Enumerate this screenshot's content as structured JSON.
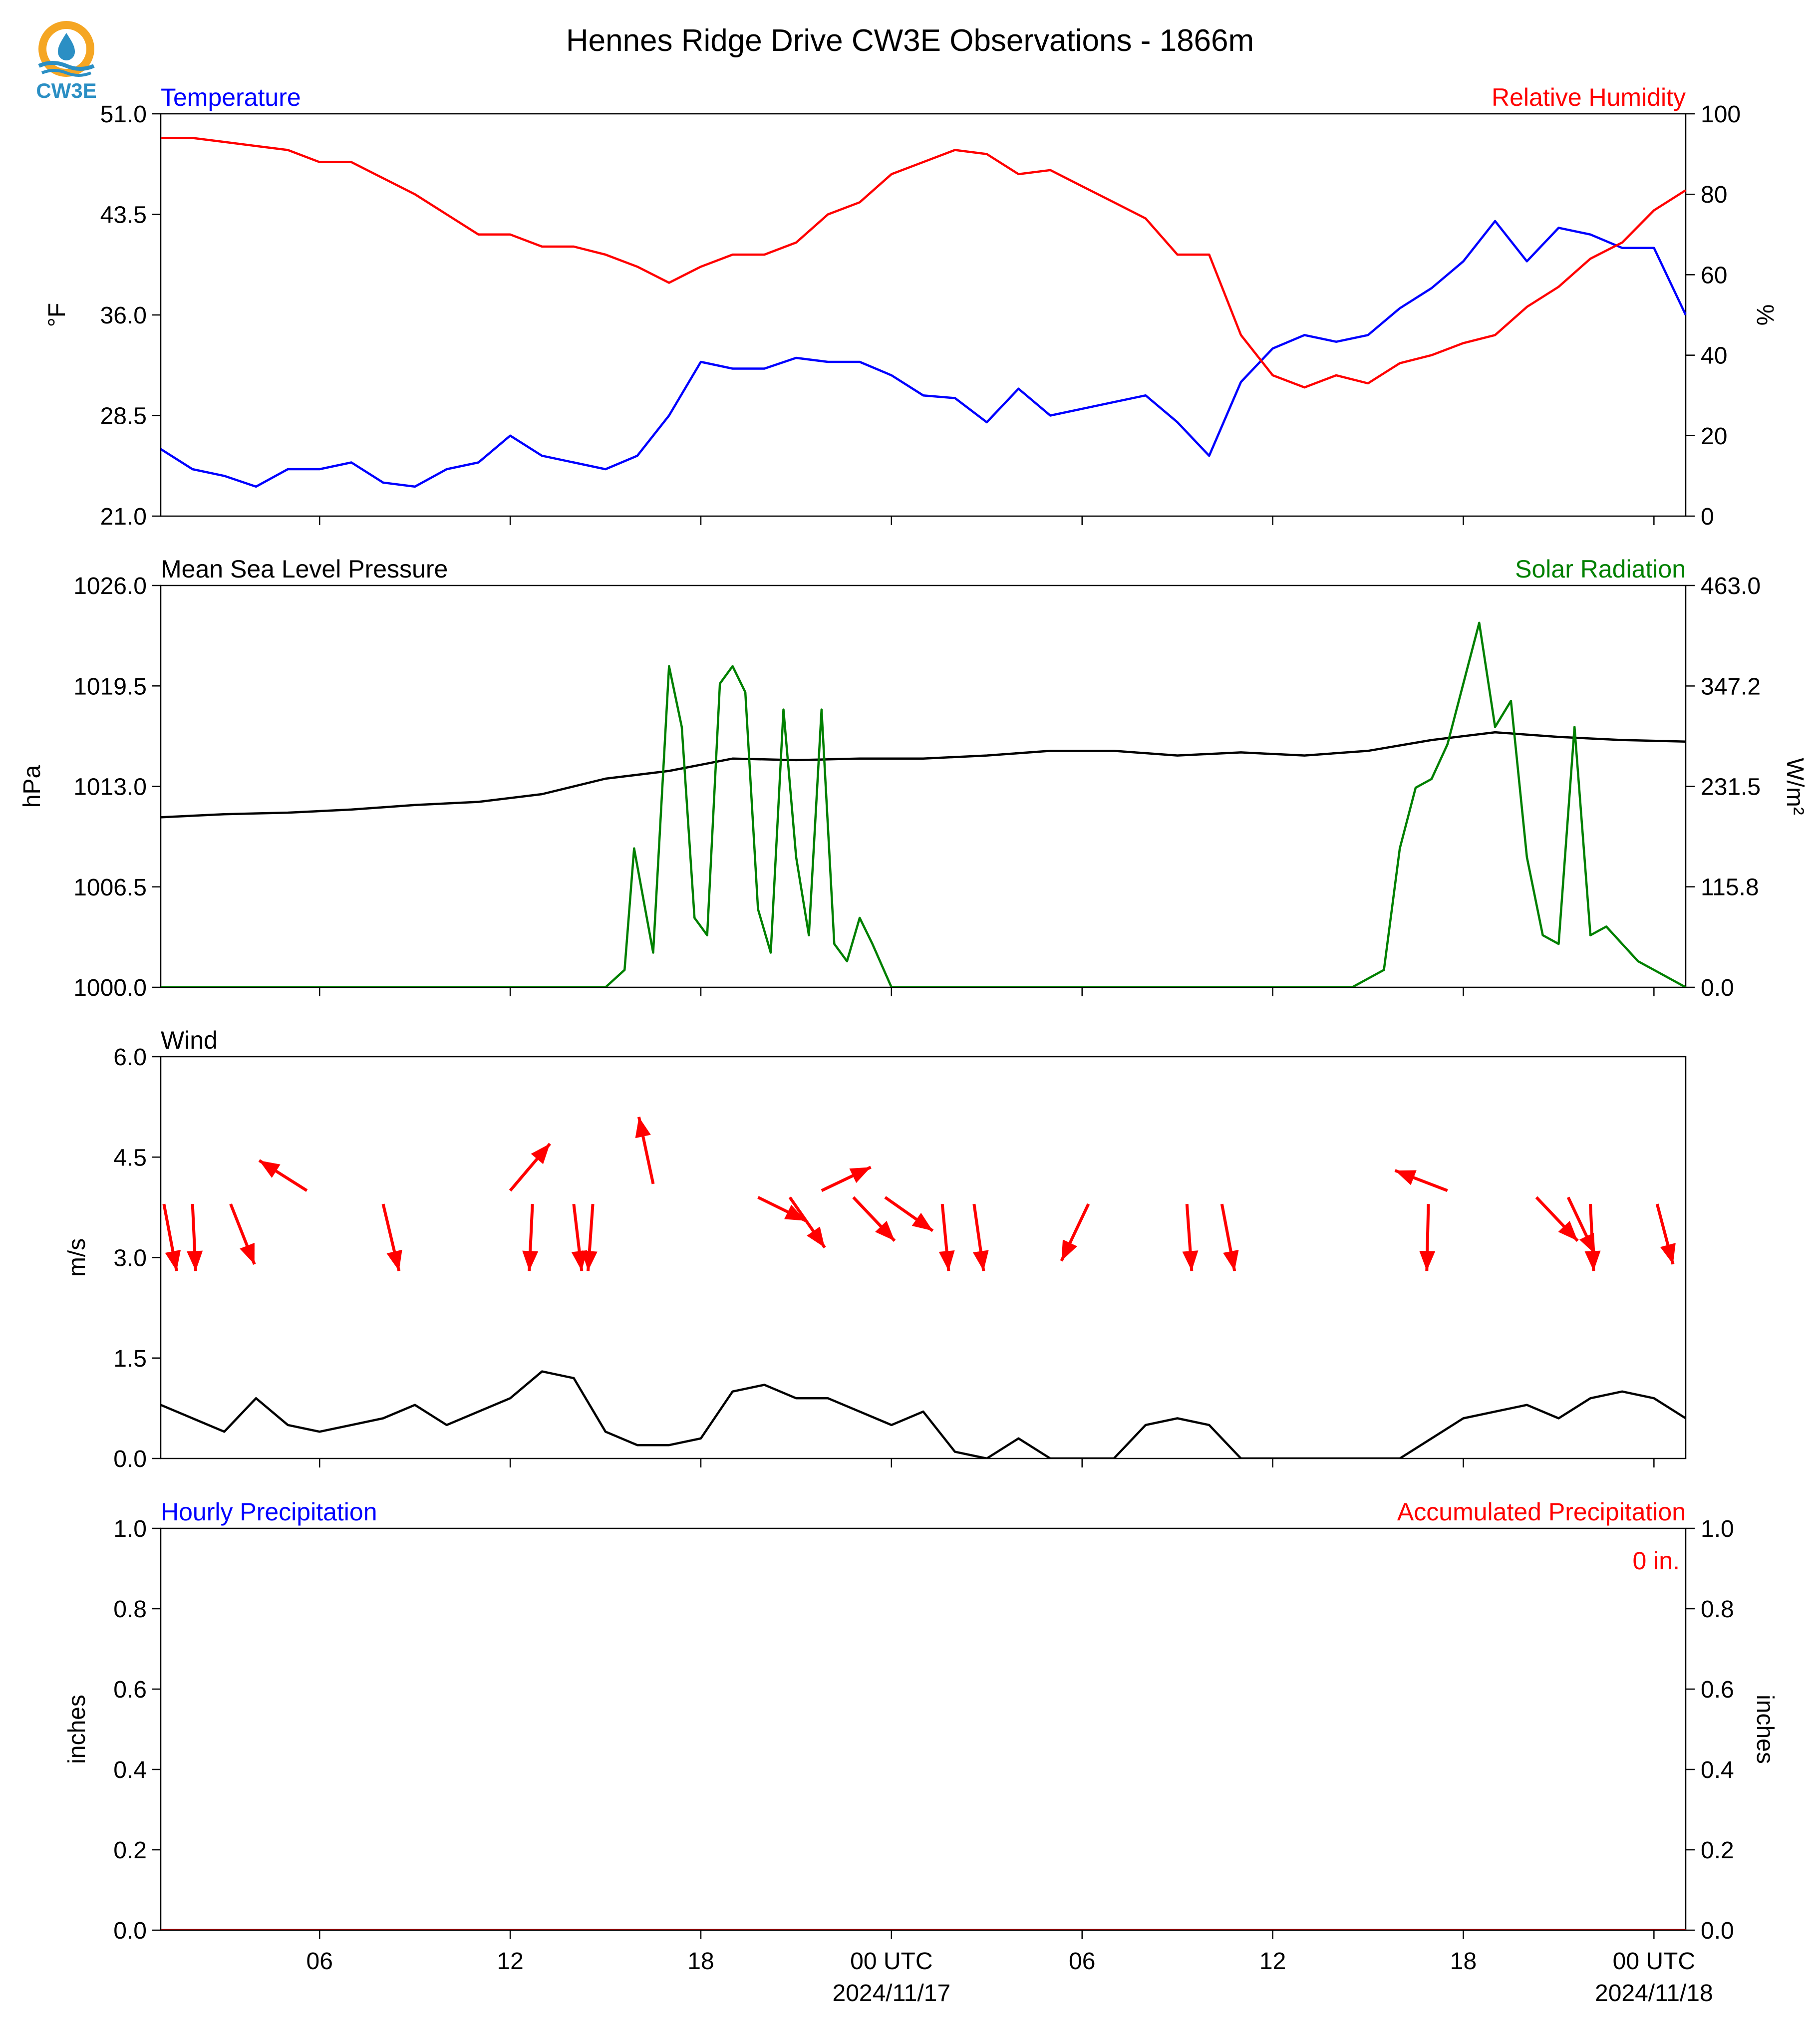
{
  "title": "Hennes Ridge Drive CW3E Observations - 1866m",
  "logo_text": "CW3E",
  "colors": {
    "temperature": "#0000ff",
    "humidity": "#ff0000",
    "pressure": "#000000",
    "solar": "#008000",
    "wind": "#000000",
    "arrows": "#ff0000",
    "precip_hourly": "#0000ff",
    "precip_accum": "#ff0000",
    "logo_orange": "#f5a623",
    "logo_blue": "#2b8fc4"
  },
  "x_axis": {
    "tick_labels": [
      "06",
      "12",
      "18",
      "00 UTC",
      "06",
      "12",
      "18",
      "00 UTC"
    ],
    "date_labels": [
      "2024/11/17",
      "2024/11/18"
    ],
    "start_hour": 1,
    "end_hour": 49
  },
  "chart_data": [
    {
      "type": "line",
      "left_title": "Temperature",
      "right_title": "Relative Humidity",
      "ylabel": "°F",
      "y2label": "%",
      "ylim": [
        21.0,
        51.0
      ],
      "y2lim": [
        0,
        100
      ],
      "yticks": [
        "21.0",
        "28.5",
        "36.0",
        "43.5",
        "51.0"
      ],
      "y2ticks": [
        "0",
        "20",
        "40",
        "60",
        "80",
        "100"
      ],
      "grid": false,
      "series": [
        {
          "axis": "left",
          "x": [
            1,
            2,
            3,
            4,
            5,
            6,
            7,
            8,
            9,
            10,
            11,
            12,
            13,
            14,
            15,
            16,
            17,
            18,
            19,
            20,
            21,
            22,
            23,
            24,
            25,
            26,
            27,
            28,
            29,
            30,
            31,
            32,
            33,
            34,
            35,
            36,
            37,
            38,
            39,
            40,
            41,
            42,
            43,
            44,
            45,
            46,
            47,
            48,
            49
          ],
          "values": [
            26.0,
            24.5,
            24.0,
            23.2,
            24.5,
            24.5,
            25.0,
            23.5,
            23.2,
            24.5,
            25.0,
            27.0,
            25.5,
            25.0,
            24.5,
            25.5,
            28.5,
            32.5,
            32.0,
            32.0,
            32.8,
            32.5,
            32.5,
            31.5,
            30.0,
            29.8,
            28.0,
            30.5,
            28.5,
            29.0,
            29.5,
            30.0,
            28.0,
            25.5,
            31.0,
            33.5,
            34.5,
            34.0,
            34.5,
            36.5,
            38.0,
            40.0,
            43.0,
            40.0,
            42.5,
            42.0,
            41.0,
            41.0,
            36.0
          ]
        },
        {
          "axis": "right",
          "x": [
            1,
            2,
            3,
            4,
            5,
            6,
            7,
            8,
            9,
            10,
            11,
            12,
            13,
            14,
            15,
            16,
            17,
            18,
            19,
            20,
            21,
            22,
            23,
            24,
            25,
            26,
            27,
            28,
            29,
            30,
            31,
            32,
            33,
            34,
            35,
            36,
            37,
            38,
            39,
            40,
            41,
            42,
            43,
            44,
            45,
            46,
            47,
            48,
            49
          ],
          "values": [
            94,
            94,
            93,
            92,
            91,
            88,
            88,
            84,
            80,
            75,
            70,
            70,
            67,
            67,
            65,
            62,
            58,
            62,
            65,
            65,
            68,
            75,
            78,
            85,
            88,
            91,
            90,
            85,
            86,
            82,
            78,
            74,
            65,
            65,
            45,
            35,
            32,
            35,
            33,
            38,
            40,
            43,
            45,
            52,
            57,
            64,
            68,
            76,
            81
          ]
        }
      ]
    },
    {
      "type": "line",
      "left_title": "Mean Sea Level Pressure",
      "right_title": "Solar Radiation",
      "ylabel": "hPa",
      "y2label": "W/m²",
      "ylim": [
        1000.0,
        1026.0
      ],
      "y2lim": [
        0.0,
        463.0
      ],
      "yticks": [
        "1000.0",
        "1006.5",
        "1013.0",
        "1019.5",
        "1026.0"
      ],
      "y2ticks": [
        "0.0",
        "115.8",
        "231.5",
        "347.2",
        "463.0"
      ],
      "grid": false,
      "series": [
        {
          "axis": "left",
          "x": [
            1,
            3,
            5,
            7,
            9,
            11,
            13,
            15,
            17,
            19,
            21,
            23,
            25,
            27,
            29,
            31,
            33,
            35,
            37,
            39,
            41,
            43,
            45,
            47,
            49
          ],
          "values": [
            1011.0,
            1011.2,
            1011.3,
            1011.5,
            1011.8,
            1012.0,
            1012.5,
            1013.5,
            1014.0,
            1014.8,
            1014.7,
            1014.8,
            1014.8,
            1015.0,
            1015.3,
            1015.3,
            1015.0,
            1015.2,
            1015.0,
            1015.3,
            1016.0,
            1016.5,
            1016.2,
            1016.0,
            1015.9
          ]
        },
        {
          "axis": "right",
          "x": [
            1,
            15,
            15.6,
            15.9,
            16.5,
            17.0,
            17.4,
            17.8,
            18.2,
            18.6,
            19.0,
            19.4,
            19.8,
            20.2,
            20.6,
            21.0,
            21.4,
            21.8,
            22.2,
            22.6,
            23.0,
            23.4,
            24.0,
            38.5,
            39.5,
            40.0,
            40.5,
            41.0,
            41.5,
            42.0,
            42.5,
            43.0,
            43.5,
            44.0,
            44.5,
            45.0,
            45.5,
            46.0,
            46.5,
            47.0,
            47.5,
            48.0,
            49.0
          ],
          "values": [
            0,
            0,
            20,
            160,
            40,
            370,
            300,
            80,
            60,
            350,
            370,
            340,
            90,
            40,
            320,
            150,
            60,
            320,
            50,
            30,
            80,
            50,
            0,
            0,
            20,
            160,
            230,
            240,
            280,
            350,
            420,
            300,
            330,
            150,
            60,
            50,
            300,
            60,
            70,
            50,
            30,
            20,
            0
          ]
        }
      ]
    },
    {
      "type": "line",
      "left_title": "Wind",
      "ylabel": "m/s",
      "ylim": [
        0.0,
        6.0
      ],
      "yticks": [
        "0.0",
        "1.5",
        "3.0",
        "4.5",
        "6.0"
      ],
      "grid": false,
      "series": [
        {
          "axis": "left",
          "x": [
            1,
            2,
            3,
            4,
            5,
            6,
            7,
            8,
            9,
            10,
            11,
            12,
            13,
            14,
            15,
            16,
            17,
            18,
            19,
            20,
            21,
            22,
            23,
            24,
            25,
            26,
            27,
            28,
            29,
            30,
            31,
            32,
            33,
            34,
            35,
            36,
            37,
            38,
            39,
            40,
            41,
            42,
            43,
            44,
            45,
            46,
            47,
            48,
            49
          ],
          "values": [
            0.8,
            0.6,
            0.4,
            0.9,
            0.5,
            0.4,
            0.5,
            0.6,
            0.8,
            0.5,
            0.7,
            0.9,
            1.3,
            1.2,
            0.4,
            0.2,
            0.2,
            0.3,
            1.0,
            1.1,
            0.9,
            0.9,
            0.7,
            0.5,
            0.7,
            0.1,
            0.0,
            0.3,
            0.0,
            0.0,
            0.0,
            0.5,
            0.6,
            0.5,
            0.0,
            0.0,
            0.0,
            0.0,
            0.0,
            0.0,
            0.3,
            0.6,
            0.7,
            0.8,
            0.6,
            0.9,
            1.0,
            0.9,
            0.6
          ]
        }
      ],
      "wind_arrows": [
        {
          "x": 1.1,
          "y": 3.8,
          "dx": 0.8,
          "dy": -2.0
        },
        {
          "x": 2.0,
          "y": 3.8,
          "dx": 0.2,
          "dy": -2.0
        },
        {
          "x": 3.2,
          "y": 3.8,
          "dx": 1.5,
          "dy": -1.8
        },
        {
          "x": 5.6,
          "y": 4.0,
          "dx": -3.0,
          "dy": 0.9
        },
        {
          "x": 8.0,
          "y": 3.8,
          "dx": 1.0,
          "dy": -2.0
        },
        {
          "x": 12.0,
          "y": 4.0,
          "dx": 2.5,
          "dy": 1.4
        },
        {
          "x": 12.7,
          "y": 3.8,
          "dx": -0.2,
          "dy": -2.0
        },
        {
          "x": 14.0,
          "y": 3.8,
          "dx": 0.5,
          "dy": -2.0
        },
        {
          "x": 14.6,
          "y": 3.8,
          "dx": -0.3,
          "dy": -2.0
        },
        {
          "x": 16.5,
          "y": 4.1,
          "dx": -0.9,
          "dy": 2.0
        },
        {
          "x": 19.8,
          "y": 3.9,
          "dx": 3.0,
          "dy": -0.7
        },
        {
          "x": 20.8,
          "y": 3.9,
          "dx": 2.2,
          "dy": -1.5
        },
        {
          "x": 21.8,
          "y": 4.0,
          "dx": 3.1,
          "dy": 0.7
        },
        {
          "x": 22.8,
          "y": 3.9,
          "dx": 2.6,
          "dy": -1.3
        },
        {
          "x": 23.8,
          "y": 3.9,
          "dx": 3.0,
          "dy": -1.0
        },
        {
          "x": 25.6,
          "y": 3.8,
          "dx": 0.4,
          "dy": -2.0
        },
        {
          "x": 26.6,
          "y": 3.8,
          "dx": 0.6,
          "dy": -2.0
        },
        {
          "x": 30.2,
          "y": 3.8,
          "dx": -1.7,
          "dy": -1.7
        },
        {
          "x": 33.3,
          "y": 3.8,
          "dx": 0.3,
          "dy": -2.0
        },
        {
          "x": 34.4,
          "y": 3.8,
          "dx": 0.8,
          "dy": -2.0
        },
        {
          "x": 41.5,
          "y": 4.0,
          "dx": -3.3,
          "dy": 0.6
        },
        {
          "x": 40.9,
          "y": 3.8,
          "dx": -0.1,
          "dy": -2.0
        },
        {
          "x": 44.3,
          "y": 3.9,
          "dx": 2.6,
          "dy": -1.3
        },
        {
          "x": 45.3,
          "y": 3.9,
          "dx": 1.7,
          "dy": -1.7
        },
        {
          "x": 46.0,
          "y": 3.8,
          "dx": 0.2,
          "dy": -2.0
        },
        {
          "x": 48.1,
          "y": 3.8,
          "dx": 1.0,
          "dy": -1.8
        }
      ]
    },
    {
      "type": "line",
      "left_title": "Hourly Precipitation",
      "right_title": "Accumulated Precipitation",
      "ylabel": "inches",
      "y2label": "inches",
      "ylim": [
        0.0,
        1.0
      ],
      "y2lim": [
        0.0,
        1.0
      ],
      "yticks": [
        "0.0",
        "0.2",
        "0.4",
        "0.6",
        "0.8",
        "1.0"
      ],
      "y2ticks": [
        "0.0",
        "0.2",
        "0.4",
        "0.6",
        "0.8",
        "1.0"
      ],
      "annotation": "0 in.",
      "grid": false,
      "series": [
        {
          "axis": "left",
          "x": [
            1,
            49
          ],
          "values": [
            0,
            0
          ]
        },
        {
          "axis": "right",
          "x": [
            1,
            49
          ],
          "values": [
            0,
            0
          ]
        }
      ]
    }
  ]
}
